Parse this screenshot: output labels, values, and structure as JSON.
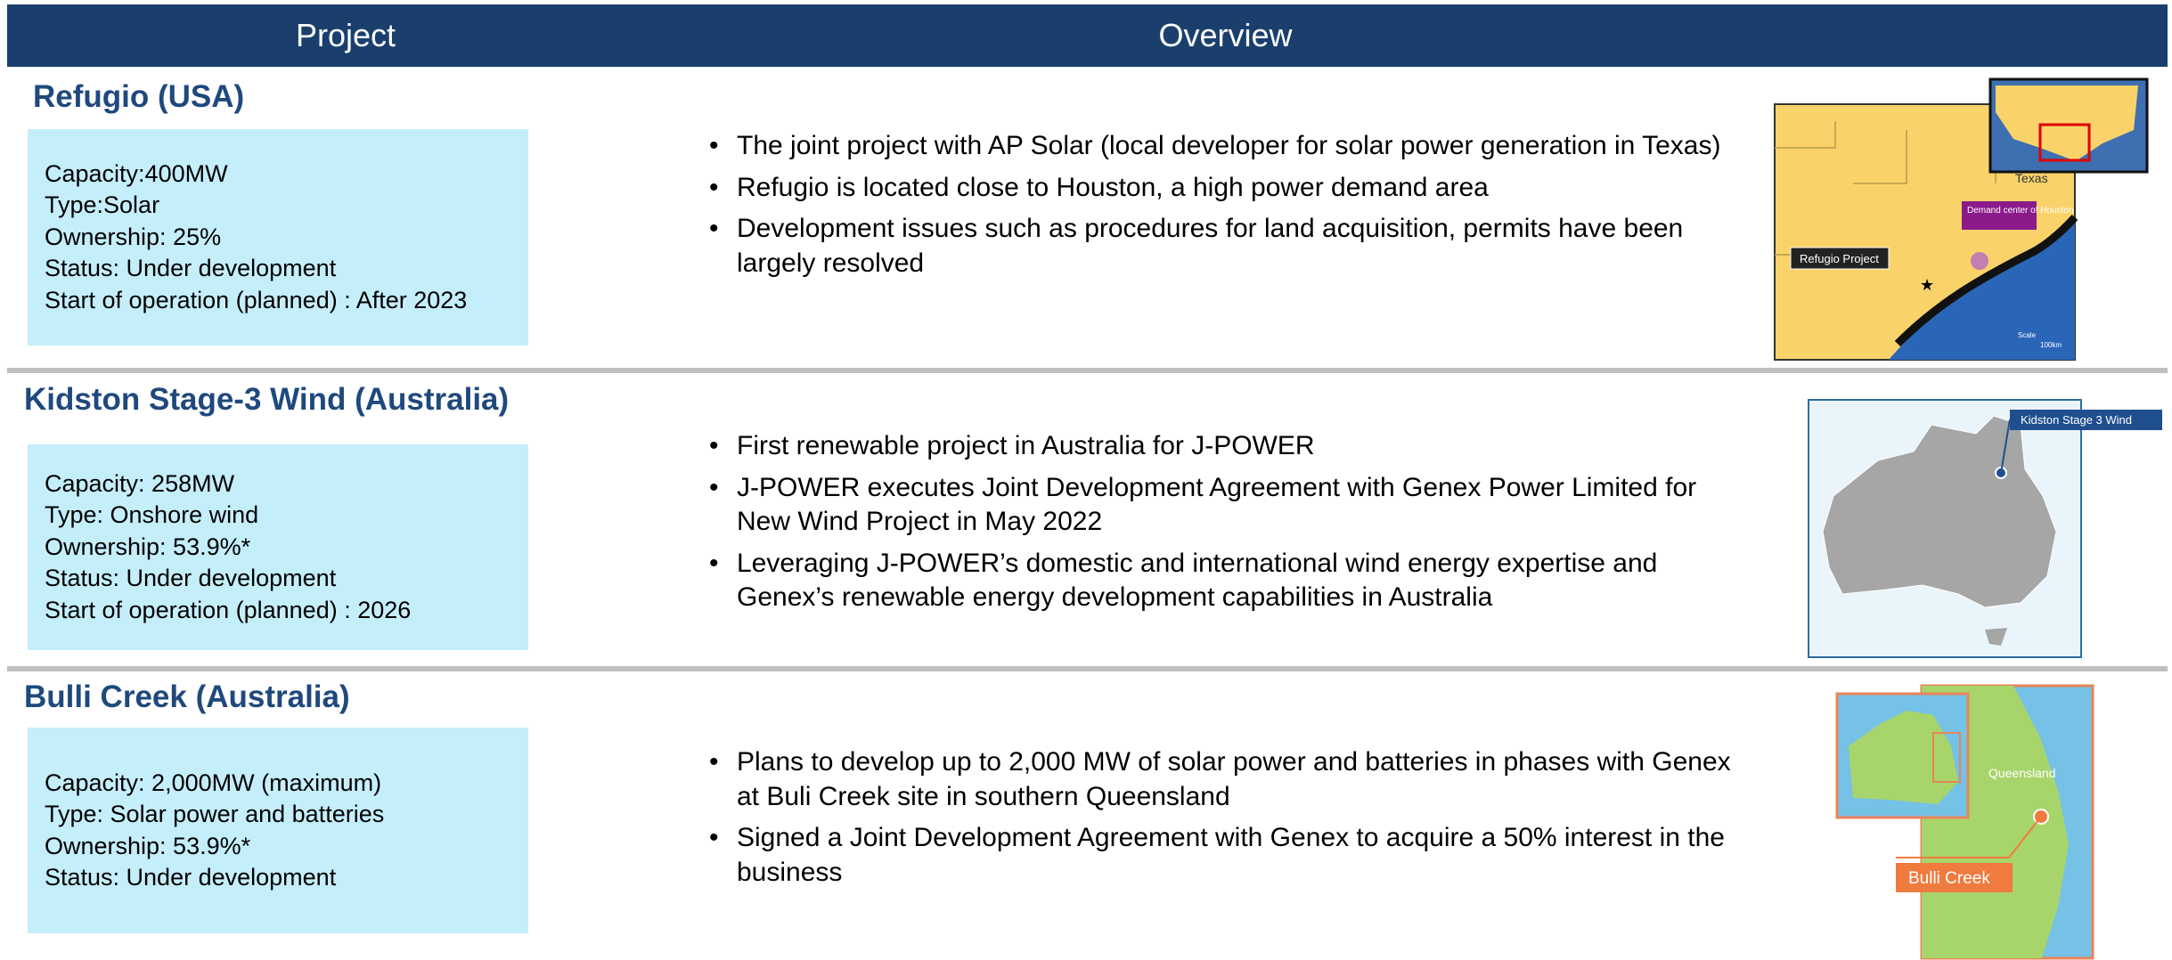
{
  "header": {
    "project": "Project",
    "overview": "Overview"
  },
  "projects": [
    {
      "name": "Refugio  (USA)",
      "details": [
        "Capacity:400MW",
        "Type:Solar",
        "Ownership: 25%",
        "Status: Under development",
        "Start of operation (planned) : After 2023"
      ],
      "bullets": [
        "The joint project with AP Solar (local developer for solar power generation in Texas)",
        "Refugio is located close to Houston, a high power demand area",
        "Development issues such as procedures for land acquisition, permits have been largely resolved"
      ],
      "map": {
        "region": "Texas",
        "demand": "Demand center of Houston",
        "site": "Refugio Project",
        "scale": "Scale",
        "distance": "100km"
      }
    },
    {
      "name": "Kidston Stage-3 Wind (Australia)",
      "details": [
        "Capacity: 258MW",
        "Type: Onshore wind",
        "Ownership: 53.9%*",
        "Status: Under development",
        "Start of operation (planned) : 2026"
      ],
      "bullets": [
        "First renewable project in Australia for J-POWER",
        "J-POWER executes Joint Development Agreement with Genex Power Limited for New Wind Project in May 2022",
        "Leveraging J-POWER’s domestic and international wind energy expertise and Genex’s renewable energy development capabilities in Australia"
      ],
      "map": {
        "site": "Kidston Stage 3 Wind"
      }
    },
    {
      "name": "Bulli Creek (Australia)",
      "details": [
        "Capacity: 2,000MW (maximum)",
        "Type: Solar power and batteries",
        "Ownership: 53.9%*",
        "Status: Under development"
      ],
      "bullets": [
        "Plans to develop up to 2,000 MW of solar power and batteries in phases with Genex at Buli Creek site in southern Queensland",
        "Signed a Joint Development Agreement with Genex to acquire a 50% interest in the business"
      ],
      "map": {
        "region": "Queensland",
        "site": "Bulli Creek"
      }
    }
  ]
}
